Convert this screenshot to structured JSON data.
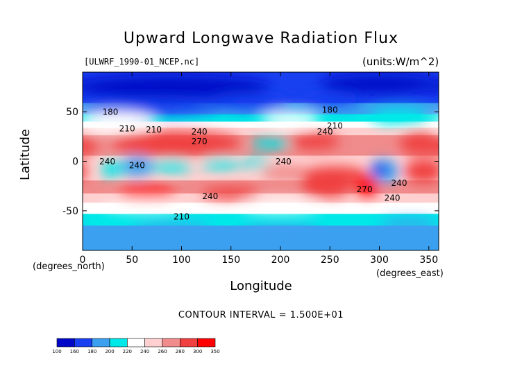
{
  "chart_data": {
    "type": "heatmap",
    "title": "Upward Longwave Radiation Flux",
    "file_label": "[ULWRF_1990-01_NCEP.nc]",
    "units_label": "(units:W/m^2)",
    "xlabel": "Longitude",
    "ylabel": "Latitude",
    "x_unit_note": "(degrees_east)",
    "y_unit_note": "(degrees_north)",
    "xlim": [
      0,
      360
    ],
    "ylim": [
      -90,
      90
    ],
    "x_ticks": [
      0,
      50,
      100,
      150,
      200,
      250,
      300,
      350
    ],
    "y_ticks": [
      -50,
      0,
      50
    ],
    "contour_interval_text": "CONTOUR INTERVAL = 1.500E+01",
    "colorbar": {
      "levels": [
        100,
        160,
        180,
        200,
        220,
        240,
        260,
        280,
        300,
        350
      ],
      "colors": [
        "#0008c8",
        "#1840f0",
        "#3ca0f0",
        "#00e8e8",
        "#ffffff",
        "#ffd0d0",
        "#f08c8c",
        "#f04040",
        "#ff0000"
      ],
      "labels": [
        "100",
        "160",
        "180",
        "200",
        "220",
        "240",
        "260",
        "280",
        "300",
        "350"
      ]
    },
    "contour_labels": [
      {
        "text": "180",
        "lon": 28,
        "lat": 47
      },
      {
        "text": "180",
        "lon": 250,
        "lat": 49
      },
      {
        "text": "210",
        "lon": 45,
        "lat": 30
      },
      {
        "text": "210",
        "lon": 255,
        "lat": 33
      },
      {
        "text": "210",
        "lon": 72,
        "lat": 29
      },
      {
        "text": "240",
        "lon": 118,
        "lat": 27
      },
      {
        "text": "240",
        "lon": 245,
        "lat": 27
      },
      {
        "text": "270",
        "lon": 118,
        "lat": 17
      },
      {
        "text": "240",
        "lon": 25,
        "lat": -3
      },
      {
        "text": "240",
        "lon": 55,
        "lat": -7
      },
      {
        "text": "240",
        "lon": 203,
        "lat": -3
      },
      {
        "text": "240",
        "lon": 320,
        "lat": -25
      },
      {
        "text": "270",
        "lon": 285,
        "lat": -31
      },
      {
        "text": "240",
        "lon": 129,
        "lat": -38
      },
      {
        "text": "240",
        "lon": 313,
        "lat": -40
      },
      {
        "text": "210",
        "lon": 100,
        "lat": -59
      }
    ],
    "zonal_profile": [
      {
        "lat": 90,
        "value": 170
      },
      {
        "lat": 70,
        "value": 165
      },
      {
        "lat": 55,
        "value": 185
      },
      {
        "lat": 45,
        "value": 205
      },
      {
        "lat": 35,
        "value": 235
      },
      {
        "lat": 25,
        "value": 265
      },
      {
        "lat": 15,
        "value": 280
      },
      {
        "lat": 0,
        "value": 250
      },
      {
        "lat": -10,
        "value": 240
      },
      {
        "lat": -25,
        "value": 275
      },
      {
        "lat": -40,
        "value": 245
      },
      {
        "lat": -55,
        "value": 215
      },
      {
        "lat": -65,
        "value": 200
      },
      {
        "lat": -78,
        "value": 195
      },
      {
        "lat": -90,
        "value": 200
      }
    ]
  }
}
